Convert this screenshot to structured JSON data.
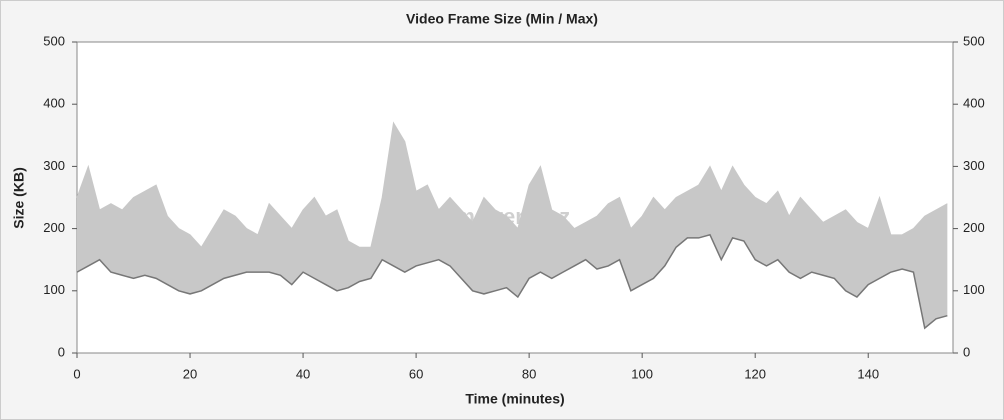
{
  "chart_data": {
    "type": "line",
    "title": "Video Frame Size (Min / Max)",
    "x_label": "Time (minutes)",
    "y_label": "Size (KB)",
    "watermark": "Film-arena.cz",
    "x": [
      0,
      2,
      4,
      6,
      8,
      10,
      12,
      14,
      16,
      18,
      20,
      22,
      24,
      26,
      28,
      30,
      32,
      34,
      36,
      38,
      40,
      42,
      44,
      46,
      48,
      50,
      52,
      54,
      56,
      58,
      60,
      62,
      64,
      66,
      68,
      70,
      72,
      74,
      76,
      78,
      80,
      82,
      84,
      86,
      88,
      90,
      92,
      94,
      96,
      98,
      100,
      102,
      104,
      106,
      108,
      110,
      112,
      114,
      116,
      118,
      120,
      122,
      124,
      126,
      128,
      130,
      132,
      134,
      136,
      138,
      140,
      142,
      144,
      146,
      148,
      150,
      152,
      154
    ],
    "series": [
      {
        "color": "#c8c8c8",
        "values": [
          250,
          300,
          230,
          240,
          230,
          250,
          260,
          270,
          220,
          200,
          190,
          170,
          200,
          230,
          220,
          200,
          190,
          240,
          220,
          200,
          230,
          250,
          220,
          230,
          180,
          170,
          170,
          250,
          370,
          340,
          260,
          270,
          230,
          250,
          230,
          210,
          250,
          230,
          220,
          200,
          270,
          300,
          230,
          220,
          200,
          210,
          220,
          240,
          250,
          200,
          220,
          250,
          230,
          250,
          260,
          270,
          300,
          260,
          300,
          270,
          250,
          240,
          260,
          220,
          250,
          230,
          210,
          220,
          230,
          210,
          200,
          250,
          190,
          190,
          200,
          220,
          230,
          240
        ]
      },
      {
        "color": "#777777",
        "values": [
          130,
          140,
          150,
          130,
          125,
          120,
          125,
          120,
          110,
          100,
          95,
          100,
          110,
          120,
          125,
          130,
          130,
          130,
          125,
          110,
          130,
          120,
          110,
          100,
          105,
          115,
          120,
          150,
          140,
          130,
          140,
          145,
          150,
          140,
          120,
          100,
          95,
          100,
          105,
          90,
          120,
          130,
          120,
          130,
          140,
          150,
          135,
          140,
          150,
          100,
          110,
          120,
          140,
          170,
          185,
          185,
          190,
          150,
          185,
          180,
          150,
          140,
          150,
          130,
          120,
          130,
          125,
          120,
          100,
          90,
          110,
          120,
          130,
          135,
          130,
          40,
          55,
          60
        ]
      }
    ],
    "xlim": [
      0,
      155
    ],
    "xticks": [
      0,
      20,
      40,
      60,
      80,
      100,
      120,
      140
    ],
    "ylim": [
      0,
      500
    ],
    "yticks": [
      0,
      100,
      200,
      300,
      400,
      500
    ],
    "y2lim": [
      0,
      500
    ],
    "y2ticks": [
      0,
      100,
      200,
      300,
      400,
      500
    ],
    "grid": false
  }
}
